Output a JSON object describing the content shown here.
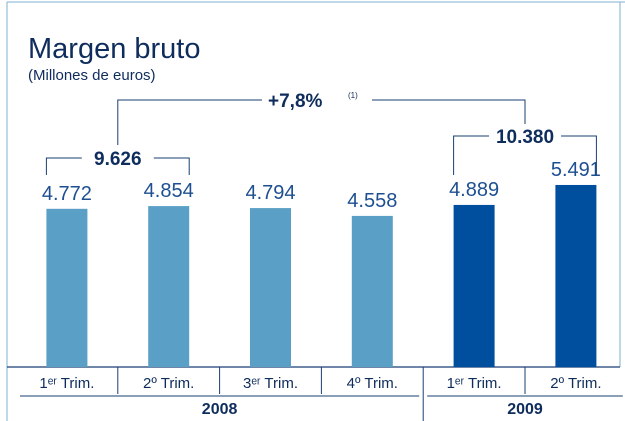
{
  "chart_data": {
    "type": "bar",
    "title": "Margen bruto",
    "subtitle": "(Millones de euros)",
    "categories": [
      "1ᵉʳ Trim.",
      "2º Trim.",
      "3ᵉʳ Trim.",
      "4º Trim.",
      "1ᵉʳ Trim.",
      "2º Trim."
    ],
    "values": [
      4772,
      4854,
      4794,
      4558,
      4889,
      5491
    ],
    "value_labels": [
      "4.772",
      "4.854",
      "4.794",
      "4.558",
      "4.889",
      "5.491"
    ],
    "groups": [
      {
        "label": "2008",
        "count": 4,
        "color": "#5a9fc5"
      },
      {
        "label": "2009",
        "count": 2,
        "color": "#004f9f"
      }
    ],
    "totals": [
      {
        "value": 9626,
        "label": "9.626"
      },
      {
        "value": 10380,
        "label": "10.380"
      }
    ],
    "change": {
      "value": 7.8,
      "label": "+7,8%",
      "note": "(1)"
    }
  }
}
